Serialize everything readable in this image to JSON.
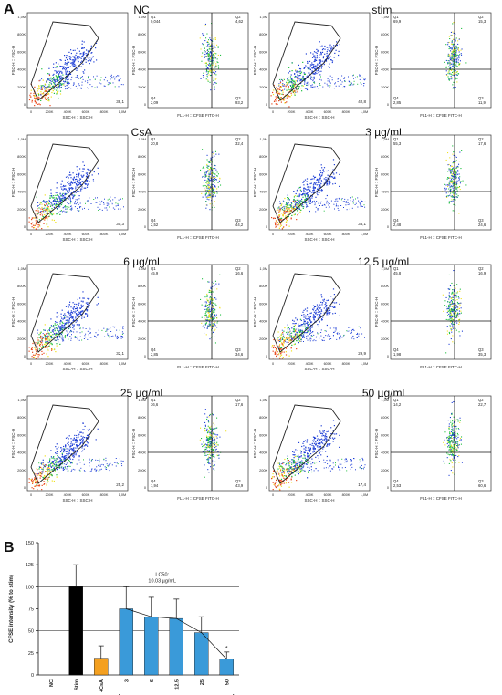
{
  "panel_a": {
    "letter": "A",
    "conditions": [
      {
        "title": "NC",
        "gate_pct": "38,1",
        "quad": {
          "q1": "Q1",
          "q1v": "0,044",
          "q2": "Q2",
          "q2v": "4,62",
          "q3": "Q3",
          "q3v": "93,2",
          "q4": "Q4",
          "q4v": "2,09"
        }
      },
      {
        "title": "stim.",
        "gate_pct": "42,8",
        "quad": {
          "q1": "Q1",
          "q1v": "69,9",
          "q2": "Q2",
          "q2v": "15,3",
          "q3": "Q3",
          "q3v": "11,9",
          "q4": "Q4",
          "q4v": "2,85"
        }
      },
      {
        "title": "CsA",
        "gate_pct": "30,3",
        "quad": {
          "q1": "Q1",
          "q1v": "20,8",
          "q2": "Q2",
          "q2v": "32,4",
          "q3": "Q3",
          "q3v": "44,2",
          "q4": "Q4",
          "q4v": "2,52"
        }
      },
      {
        "title": "3 µg/ml",
        "gate_pct": "36,1",
        "quad": {
          "q1": "Q1",
          "q1v": "55,3",
          "q2": "Q2",
          "q2v": "17,6",
          "q3": "Q3",
          "q3v": "24,6",
          "q4": "Q4",
          "q4v": "2,48"
        }
      },
      {
        "title": "6 µg/ml",
        "gate_pct": "32,1",
        "quad": {
          "q1": "Q1",
          "q1v": "45,9",
          "q2": "Q2",
          "q2v": "16,6",
          "q3": "Q3",
          "q3v": "34,6",
          "q4": "Q4",
          "q4v": "2,85"
        }
      },
      {
        "title": "12.5 µg/ml",
        "gate_pct": "29,9",
        "quad": {
          "q1": "Q1",
          "q1v": "45,8",
          "q2": "Q2",
          "q2v": "16,9",
          "q3": "Q3",
          "q3v": "35,3",
          "q4": "Q4",
          "q4v": "1,98"
        }
      },
      {
        "title": "25 µg/ml",
        "gate_pct": "25,2",
        "quad": {
          "q1": "Q1",
          "q1v": "36,6",
          "q2": "Q2",
          "q2v": "17,6",
          "q3": "Q3",
          "q3v": "43,9",
          "q4": "Q4",
          "q4v": "1,94"
        }
      },
      {
        "title": "50 µg/ml",
        "gate_pct": "17,4",
        "quad": {
          "q1": "Q1",
          "q1v": "14,2",
          "q2": "Q2",
          "q2v": "22,7",
          "q3": "Q3",
          "q3v": "60,6",
          "q4": "Q4",
          "q4v": "2,53"
        }
      }
    ],
    "fsc_ssc": {
      "xlabel": "SSC-H :: SSC-H",
      "ylabel": "FSC-H :: FSC-H",
      "xticks": [
        "0",
        "200K",
        "400K",
        "600K",
        "800K",
        "1,0M"
      ],
      "yticks": [
        "0",
        "200K",
        "400K",
        "600K",
        "800K",
        "1,0M"
      ]
    },
    "cfse": {
      "xlabel": "FL1-H :: CFSE FITC-H",
      "ylabel": "FSC-H :: FSC-H",
      "yticks": [
        "0",
        "200K",
        "400K",
        "600K",
        "800K",
        "1,0M"
      ]
    },
    "colors": {
      "low": "#1f3fd6",
      "mid": "#1fbf3f",
      "high": "#f0e21f",
      "hot": "#e8491d",
      "gate": "#222222"
    }
  },
  "chart_data": {
    "type": "bar",
    "panel_letter": "B",
    "categories": [
      "NC",
      "Stim",
      "+CsA",
      "3",
      "6",
      "12.5",
      "25",
      "50"
    ],
    "values": [
      0,
      100,
      19,
      75,
      66,
      64,
      48,
      18
    ],
    "errors": [
      0,
      25,
      14,
      25,
      22,
      22,
      18,
      8
    ],
    "bar_colors": [
      "#000000",
      "#000000",
      "#f4a020",
      "#3a9ad9",
      "#3a9ad9",
      "#3a9ad9",
      "#3a9ad9",
      "#3a9ad9"
    ],
    "ylabel": "CFSE intensity (% to stim)",
    "ylim": [
      0,
      150
    ],
    "yticks": [
      0,
      25,
      50,
      75,
      100,
      125,
      150
    ],
    "reference_lines": [
      100,
      50
    ],
    "annotation": "LC50:\n10.03 µg/mL",
    "significance": [
      {
        "category": "50",
        "mark": "*"
      }
    ],
    "group_label": "[µg/mL]",
    "fit_line": true
  }
}
